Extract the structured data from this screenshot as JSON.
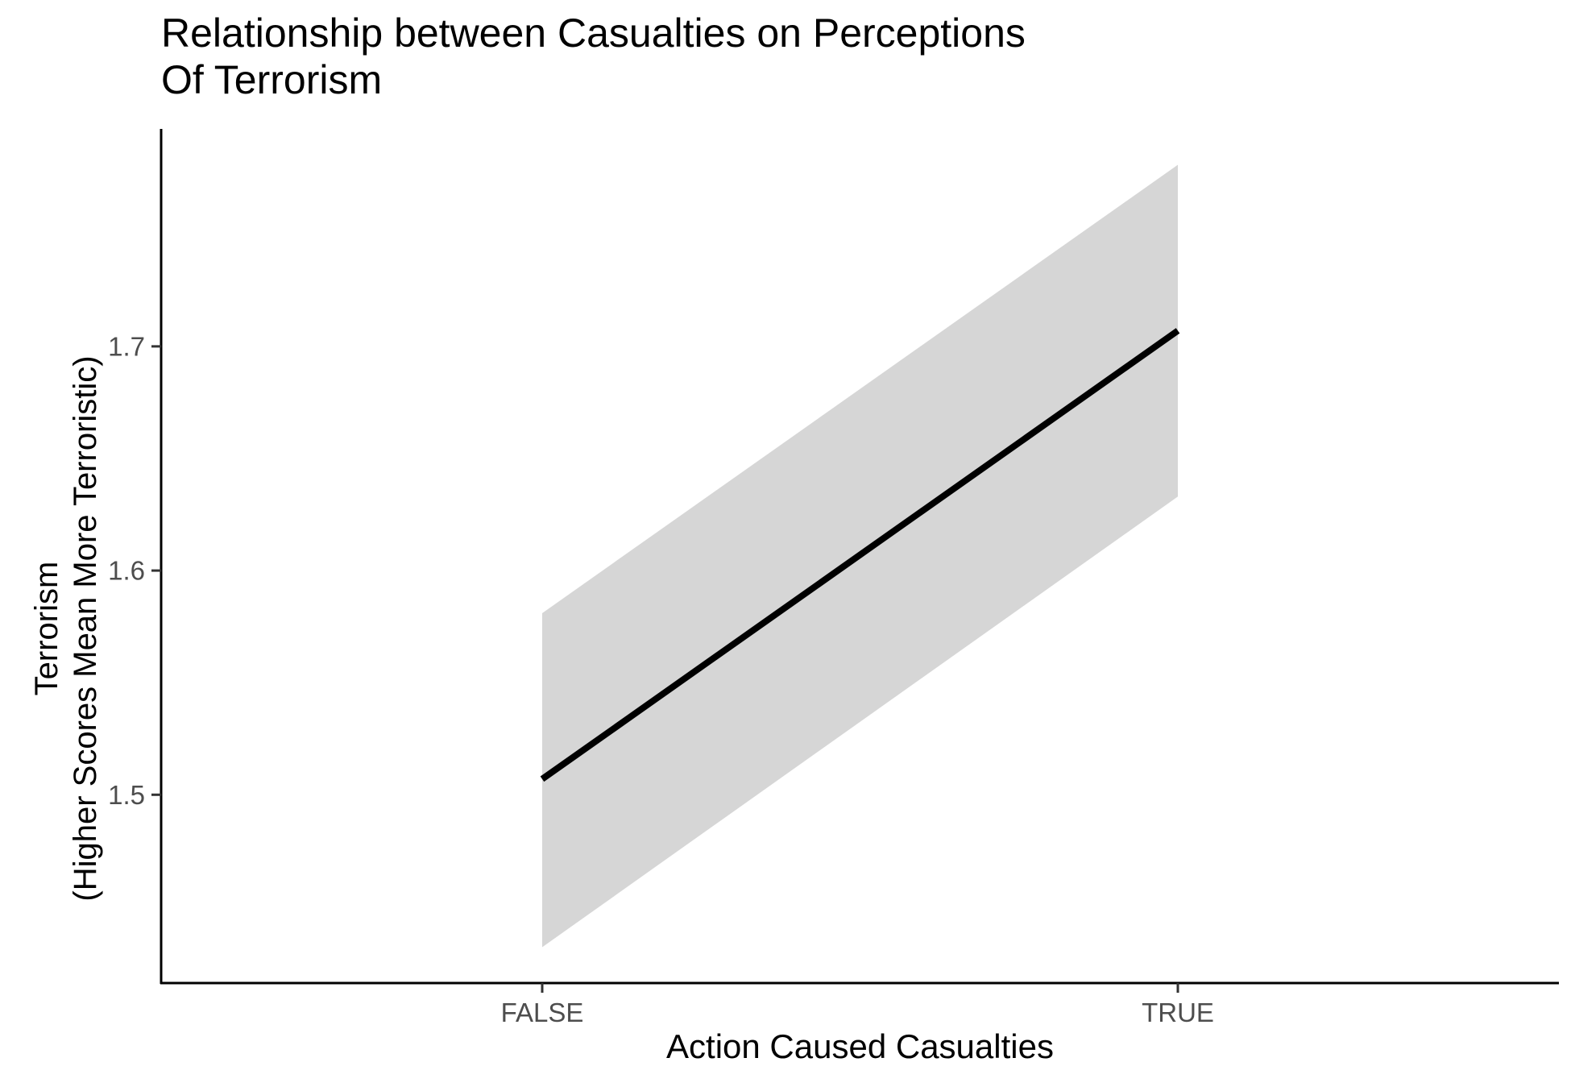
{
  "chart_data": {
    "type": "line",
    "title_lines": [
      "Relationship between Casualties on Perceptions",
      "Of Terrorism"
    ],
    "xlabel": "Action Caused Casualties",
    "ylabel_lines": [
      "Terrorism",
      "(Higher Scores Mean More Terroristic)"
    ],
    "categories": [
      "FALSE",
      "TRUE"
    ],
    "series": [
      {
        "values": [
          1.507,
          1.707
        ],
        "lower": [
          1.432,
          1.633
        ],
        "upper": [
          1.581,
          1.781
        ],
        "color": "#000000",
        "band_color": "#d6d6d6"
      }
    ],
    "yticks": [
      "1.5",
      "1.6",
      "1.7"
    ],
    "ylim": [
      1.416,
      1.797
    ],
    "grid": false,
    "legend": "none"
  }
}
